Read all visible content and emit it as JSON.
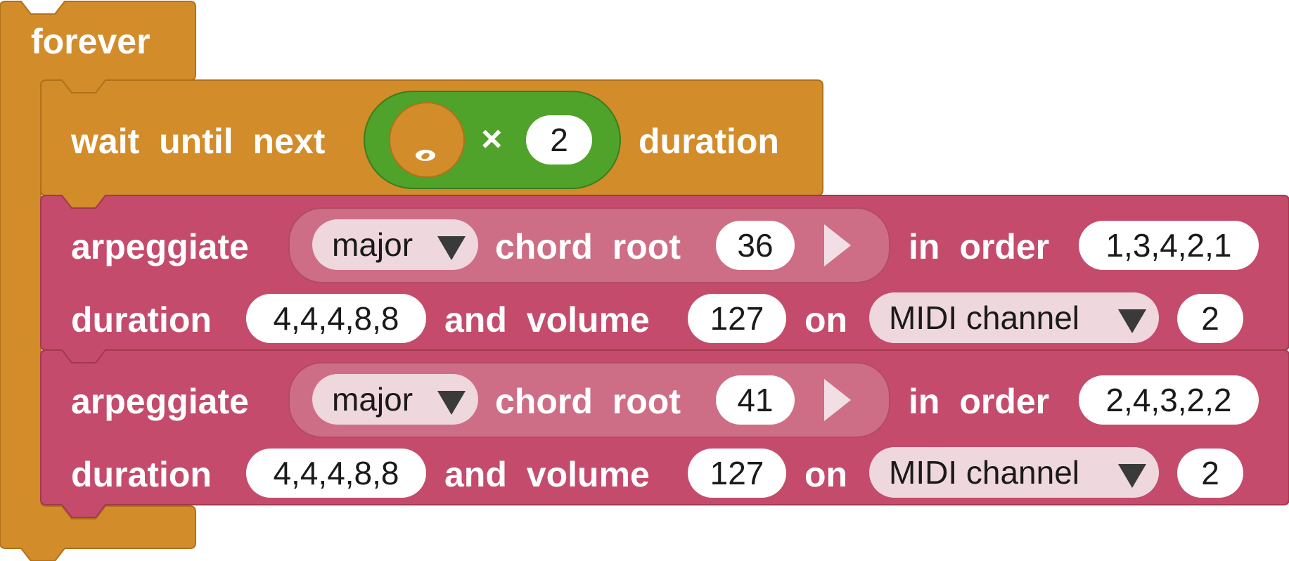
{
  "forever_block": {
    "label": "forever",
    "color": "#d38c2a"
  },
  "wait_block": {
    "label": "wait until next",
    "suffix": "duration",
    "multiply_symbol": "×",
    "multiplier_value": "2",
    "note_icon": "whole-note-icon",
    "color": "#d38c2a",
    "reporter_color": "#4fa22a"
  },
  "arpeggiate_blocks": [
    {
      "label": "arpeggiate",
      "chord_type": "major",
      "chord_root_label": "chord root",
      "chord_root": "36",
      "order_label": "in order",
      "order": "1,3,4,2,1",
      "duration_label": "duration",
      "duration": "4,4,4,8,8",
      "volume_label": "and volume",
      "volume": "127",
      "on_label": "on",
      "channel_label": "MIDI channel",
      "channel": "2"
    },
    {
      "label": "arpeggiate",
      "chord_type": "major",
      "chord_root_label": "chord root",
      "chord_root": "41",
      "order_label": "in order",
      "order": "2,4,3,2,2",
      "duration_label": "duration",
      "duration": "4,4,4,8,8",
      "volume_label": "and volume",
      "volume": "127",
      "on_label": "on",
      "channel_label": "MIDI channel",
      "channel": "2"
    }
  ],
  "colors": {
    "control": "#d38c2a",
    "music": "#c54b6c",
    "operator": "#4fa22a"
  }
}
